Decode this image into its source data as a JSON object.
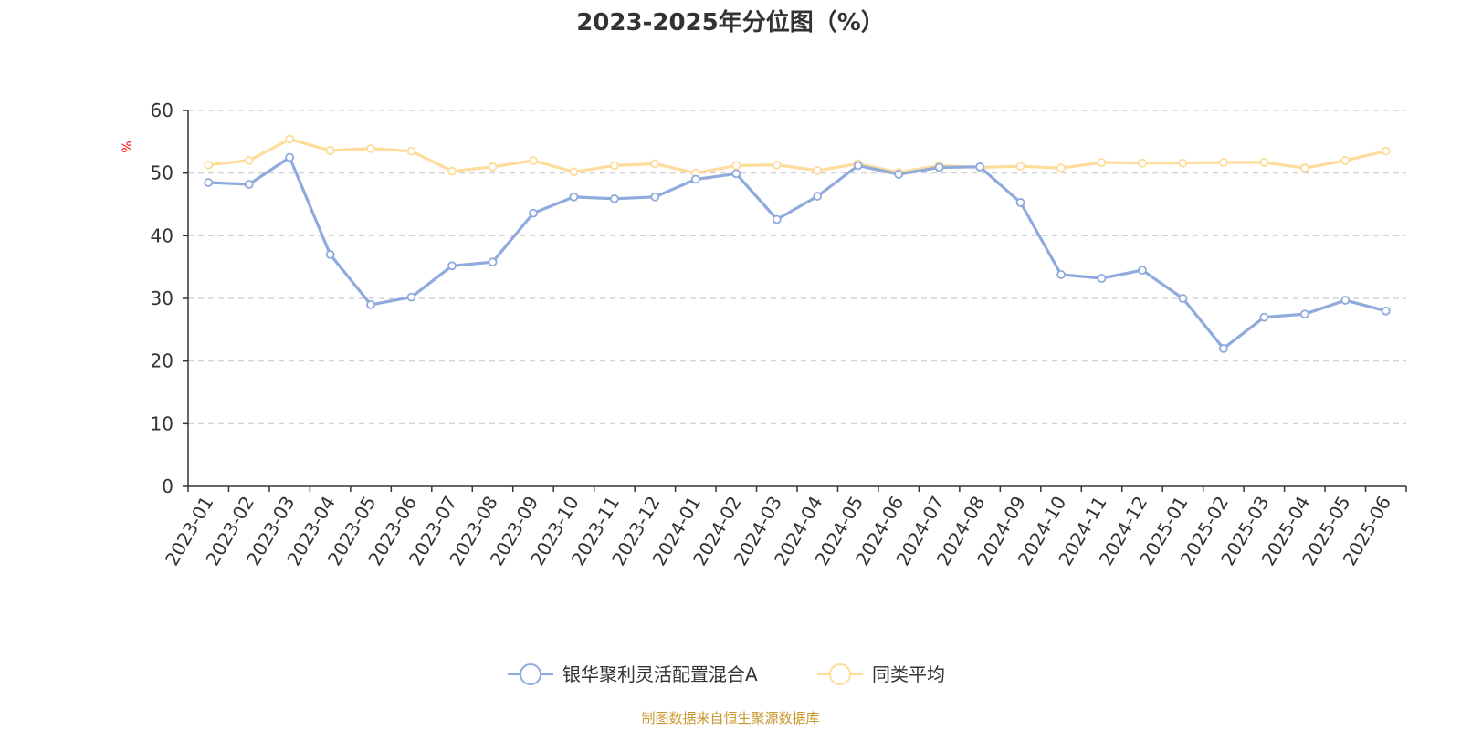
{
  "chart_data": {
    "type": "line",
    "title": "2023-2025年分位图（%）",
    "ylabel": "%",
    "xlabel": "",
    "ylim": [
      0,
      60
    ],
    "yticks": [
      0,
      10,
      20,
      30,
      40,
      50,
      60
    ],
    "grid": true,
    "legend_position": "bottom",
    "categories": [
      "2023-01",
      "2023-02",
      "2023-03",
      "2023-04",
      "2023-05",
      "2023-06",
      "2023-07",
      "2023-08",
      "2023-09",
      "2023-10",
      "2023-11",
      "2023-12",
      "2024-01",
      "2024-02",
      "2024-03",
      "2024-04",
      "2024-05",
      "2024-06",
      "2024-07",
      "2024-08",
      "2024-09",
      "2024-10",
      "2024-11",
      "2024-12",
      "2025-01",
      "2025-02",
      "2025-03",
      "2025-04",
      "2025-05",
      "2025-06"
    ],
    "series": [
      {
        "name": "银华聚利灵活配置混合A",
        "color": "#8faadc",
        "values": [
          48.5,
          48.2,
          52.5,
          37.0,
          29.0,
          30.2,
          35.2,
          35.8,
          43.6,
          46.2,
          45.9,
          46.2,
          49.0,
          49.9,
          42.6,
          46.3,
          51.2,
          49.8,
          50.9,
          51.0,
          45.3,
          33.8,
          33.2,
          34.5,
          30.0,
          22.0,
          27.0,
          27.5,
          29.7,
          28.0
        ]
      },
      {
        "name": "同类平均",
        "color": "#fddc9c",
        "values": [
          51.3,
          52.0,
          55.4,
          53.6,
          53.9,
          53.5,
          50.3,
          51.0,
          52.0,
          50.2,
          51.2,
          51.5,
          50.0,
          51.2,
          51.3,
          50.4,
          51.5,
          50.1,
          51.2,
          50.9,
          51.1,
          50.8,
          51.7,
          51.6,
          51.6,
          51.7,
          51.7,
          50.8,
          52.0,
          53.5
        ]
      }
    ]
  },
  "source_note": "制图数据来自恒生聚源数据库"
}
